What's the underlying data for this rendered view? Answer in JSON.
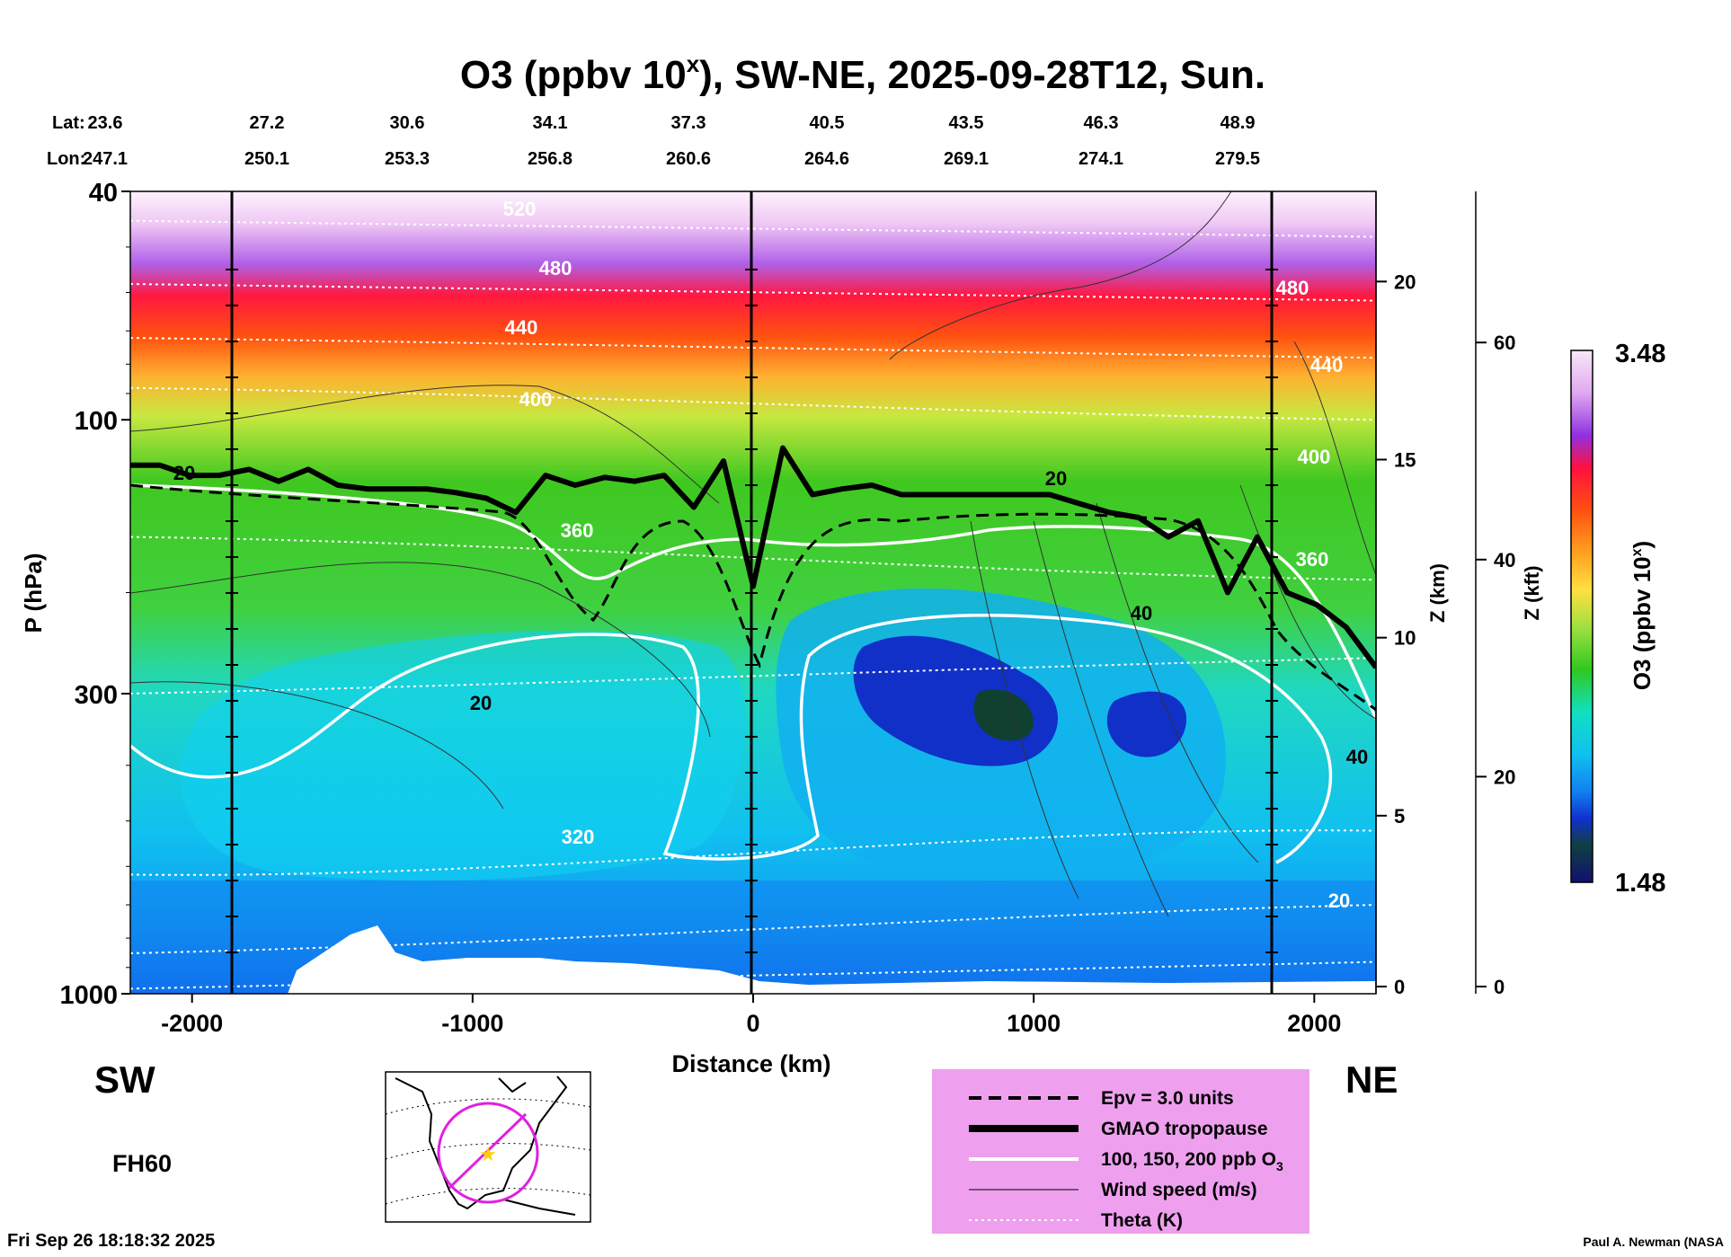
{
  "chart_data": {
    "type": "heatmap",
    "title": "O3 (ppbv 10",
    "title_sup": "x",
    "title_rest": "), SW-NE, 2025-09-28T12, Sun.",
    "lat_label": "Lat:",
    "lon_label": "Lon:",
    "lat_values": [
      "23.6",
      "27.2",
      "30.6",
      "34.1",
      "37.3",
      "40.5",
      "43.5",
      "46.3",
      "48.9"
    ],
    "lon_values": [
      "247.1",
      "250.1",
      "253.3",
      "256.8",
      "260.6",
      "264.6",
      "269.1",
      "274.1",
      "279.5"
    ],
    "xlabel": "Distance (km)",
    "ylabel": "P (hPa)",
    "x_ticks": [
      "-2000",
      "-1000",
      "0",
      "1000",
      "2000"
    ],
    "x_tick_values": [
      -2000,
      -1000,
      0,
      1000,
      2000
    ],
    "xlim": [
      -2220,
      2220
    ],
    "y_ticks": [
      "40",
      "100",
      "300",
      "1000"
    ],
    "y_tick_values": [
      40,
      100,
      300,
      1000
    ],
    "ylim": [
      40,
      1000
    ],
    "y_scale": "log",
    "z_km_label": "Z (km)",
    "z_km_ticks": [
      "20",
      "15",
      "10",
      "5",
      "0"
    ],
    "z_kft_label": "Z (kft)",
    "z_kft_ticks": [
      "60",
      "40",
      "20",
      "0"
    ],
    "colorbar_label": "O3 (ppbv 10",
    "colorbar_label_sup": "x",
    "colorbar_label_end": ")",
    "colorbar_max": "3.48",
    "colorbar_min": "1.48",
    "colorbar_range": [
      1.48,
      3.48
    ],
    "colorbar_colors": [
      "#f8e8f8",
      "#e8b8f0",
      "#c070f0",
      "#9030e0",
      "#ff1040",
      "#ff2020",
      "#ff6010",
      "#ff9020",
      "#ffc030",
      "#ffe040",
      "#e8f040",
      "#a0e040",
      "#40c820",
      "#30d040",
      "#10e0c0",
      "#10d0f0",
      "#10b0f0",
      "#1080f0",
      "#1040e0",
      "#1020a0",
      "#104030",
      "#102080"
    ],
    "theta_labels": [
      "520",
      "480",
      "440",
      "400",
      "360",
      "320"
    ],
    "wind_labels": [
      "20",
      "40"
    ],
    "ozone_contour_labels": [
      "20"
    ],
    "direction_left": "SW",
    "direction_right": "NE",
    "forecast_hour": "FH60",
    "legend": [
      {
        "label": "Epv = 3.0 units",
        "style": "dashed"
      },
      {
        "label": "GMAO tropopause",
        "style": "thick"
      },
      {
        "label": "100, 150, 200 ppb O",
        "sub": "3",
        "style": "white"
      },
      {
        "label": "Wind speed (m/s)",
        "style": "thin"
      },
      {
        "label": "Theta (K)",
        "style": "dotted"
      }
    ],
    "legend_bg": "#eea0ee",
    "tropopause_hpa": [
      120,
      120,
      125,
      125,
      122,
      128,
      122,
      130,
      132,
      132,
      132,
      134,
      137,
      145,
      125,
      130,
      126,
      128,
      125,
      142,
      118,
      195,
      112,
      135,
      132,
      130,
      135,
      135,
      135,
      135,
      135,
      135,
      140,
      145,
      148,
      160,
      150,
      200,
      160,
      200,
      210,
      230,
      270
    ],
    "theta_levels_k": [
      320,
      360,
      400,
      440,
      480,
      520
    ]
  },
  "footer_left": "Fri Sep 26 18:18:32 2025",
  "footer_right": "Paul A. Newman (NASA"
}
